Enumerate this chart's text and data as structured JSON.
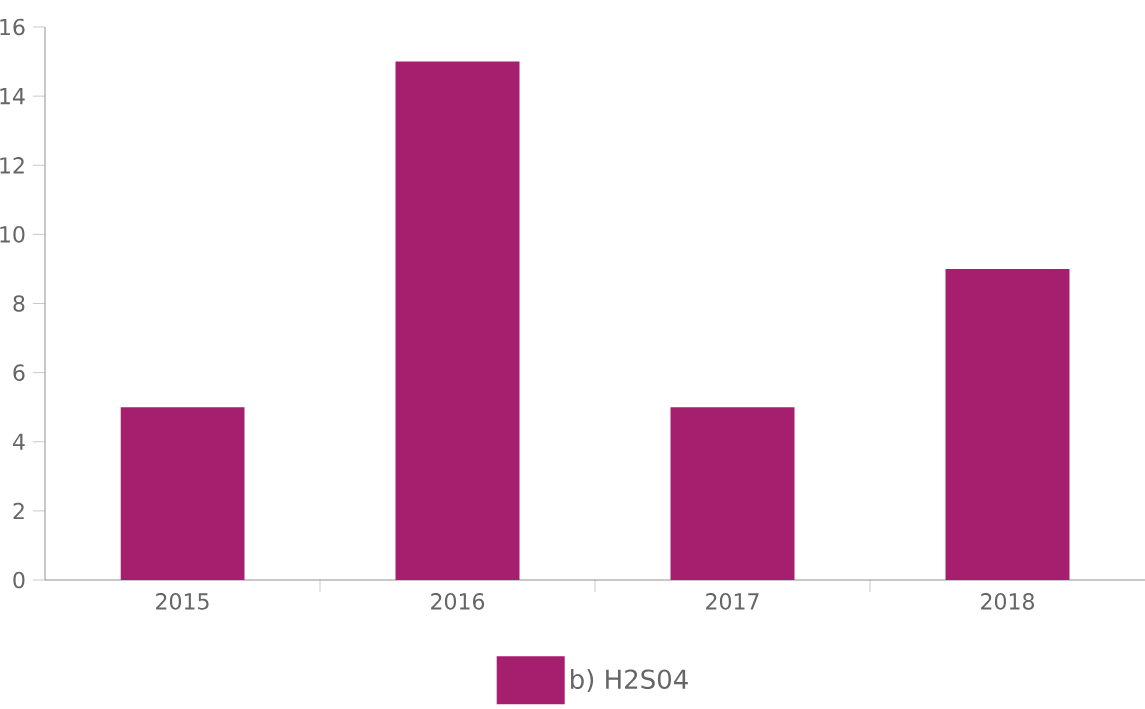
{
  "chart_data": {
    "type": "bar",
    "categories": [
      "2015",
      "2016",
      "2017",
      "2018"
    ],
    "series": [
      {
        "name": "b) H2S04",
        "color": "#a61e6e",
        "values": [
          5,
          15,
          5,
          9
        ]
      }
    ],
    "ylim": [
      0,
      16
    ],
    "yticks": [
      0,
      2,
      4,
      6,
      8,
      10,
      12,
      14,
      16
    ],
    "legend": "bottom"
  }
}
